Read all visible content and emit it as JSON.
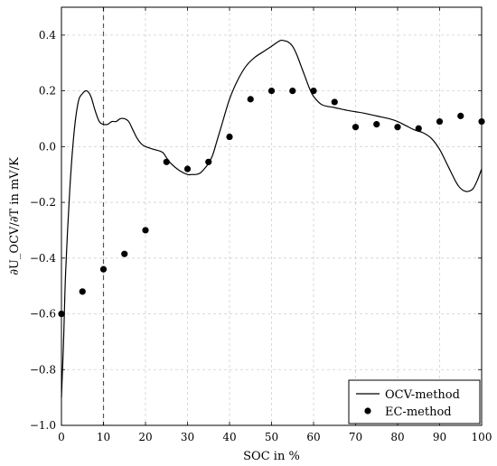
{
  "chart_data": {
    "type": "line",
    "xlabel": "SOC in %",
    "ylabel": "∂U_OCV/∂T in mV/K",
    "xlim": [
      0,
      100
    ],
    "ylim": [
      -1.0,
      0.5
    ],
    "xticks": [
      0,
      10,
      20,
      30,
      40,
      50,
      60,
      70,
      80,
      90,
      100
    ],
    "yticks": [
      -1.0,
      -0.8,
      -0.6,
      -0.4,
      -0.2,
      0.0,
      0.2,
      0.4
    ],
    "ytick_labels": [
      "−1.0",
      "−0.8",
      "−0.6",
      "−0.4",
      "−0.2",
      "0.0",
      "0.2",
      "0.4"
    ],
    "grid": true,
    "vline_x": 10,
    "legend_position": "bottom-right",
    "series": [
      {
        "name": "OCV-method",
        "kind": "line",
        "color": "#000000",
        "x": [
          0,
          0.5,
          1,
          2,
          3,
          4,
          5,
          6,
          7,
          8,
          9,
          10,
          11,
          12,
          13,
          14,
          15,
          16,
          17,
          18,
          19,
          20,
          22,
          24,
          25,
          26,
          28,
          30,
          31,
          32,
          33,
          34,
          35,
          36,
          37,
          38,
          40,
          42,
          44,
          46,
          48,
          50,
          52,
          53,
          54,
          55,
          56,
          57,
          58,
          59,
          60,
          62,
          65,
          68,
          70,
          72,
          75,
          78,
          80,
          82,
          84,
          86,
          88,
          90,
          92,
          94,
          95,
          96,
          97,
          98,
          99,
          100
        ],
        "y": [
          -0.9,
          -0.7,
          -0.45,
          -0.15,
          0.05,
          0.16,
          0.19,
          0.2,
          0.18,
          0.13,
          0.09,
          0.08,
          0.08,
          0.09,
          0.09,
          0.1,
          0.1,
          0.09,
          0.06,
          0.03,
          0.01,
          0.0,
          -0.01,
          -0.02,
          -0.04,
          -0.06,
          -0.085,
          -0.1,
          -0.1,
          -0.1,
          -0.095,
          -0.08,
          -0.06,
          -0.03,
          0.02,
          0.07,
          0.17,
          0.24,
          0.29,
          0.32,
          0.34,
          0.36,
          0.38,
          0.38,
          0.375,
          0.36,
          0.33,
          0.29,
          0.25,
          0.21,
          0.18,
          0.15,
          0.14,
          0.13,
          0.125,
          0.12,
          0.11,
          0.1,
          0.09,
          0.075,
          0.06,
          0.05,
          0.03,
          -0.01,
          -0.07,
          -0.13,
          -0.15,
          -0.16,
          -0.16,
          -0.15,
          -0.12,
          -0.08
        ]
      },
      {
        "name": "EC-method",
        "kind": "scatter",
        "color": "#000000",
        "x": [
          0,
          5,
          10,
          15,
          20,
          25,
          30,
          35,
          40,
          45,
          50,
          55,
          60,
          65,
          70,
          75,
          80,
          85,
          90,
          95,
          100
        ],
        "y": [
          -0.6,
          -0.52,
          -0.44,
          -0.385,
          -0.3,
          -0.055,
          -0.08,
          -0.055,
          0.035,
          0.17,
          0.2,
          0.2,
          0.2,
          0.16,
          0.07,
          0.08,
          0.07,
          0.065,
          0.09,
          0.11,
          0.09
        ]
      }
    ]
  }
}
